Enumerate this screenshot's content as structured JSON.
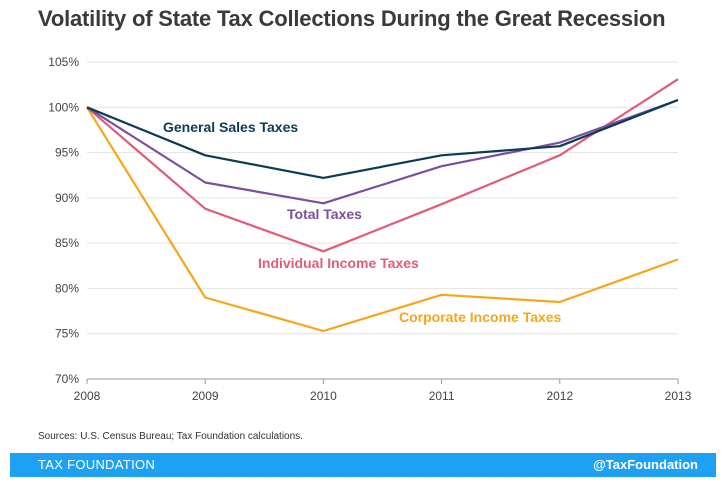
{
  "title": "Volatility of State Tax Collections During the Great Recession",
  "source": "Sources: U.S. Census Bureau; Tax Foundation calculations.",
  "footer": {
    "brand": "TAX FOUNDATION",
    "handle": "@TaxFoundation",
    "color": "#1ea1f2"
  },
  "chart_data": {
    "type": "line",
    "x": [
      "2008",
      "2009",
      "2010",
      "2011",
      "2012",
      "2013"
    ],
    "ylim": [
      70,
      105
    ],
    "yticks": [
      "70%",
      "75%",
      "80%",
      "85%",
      "90%",
      "95%",
      "100%",
      "105%"
    ],
    "grid": "horizontal",
    "legend": "inline labels",
    "series": [
      {
        "name": "General Sales Taxes",
        "color": "#0d3b54",
        "values": [
          100,
          94.7,
          92.2,
          94.7,
          95.7,
          100.8
        ]
      },
      {
        "name": "Total Taxes",
        "color": "#7b4f9d",
        "values": [
          100,
          91.7,
          89.4,
          93.5,
          96.1,
          100.8
        ]
      },
      {
        "name": "Individual Income Taxes",
        "color": "#e05d7a",
        "values": [
          100,
          88.8,
          84.1,
          89.3,
          94.7,
          103.1
        ]
      },
      {
        "name": "Corporate Income Taxes",
        "color": "#f5a71b",
        "values": [
          100,
          79.0,
          75.3,
          79.3,
          78.5,
          83.2
        ]
      }
    ]
  }
}
